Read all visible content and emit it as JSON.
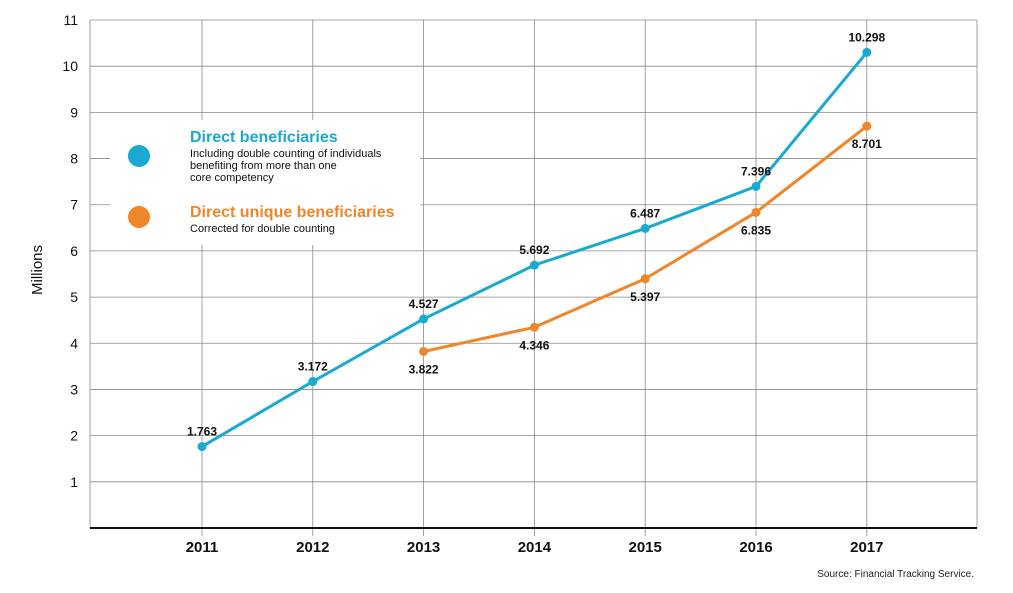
{
  "chart_data": {
    "type": "line",
    "title": "",
    "xlabel": "",
    "ylabel": "Millions",
    "ylim": [
      0,
      11
    ],
    "yticks": [
      1,
      2,
      3,
      4,
      5,
      6,
      7,
      8,
      9,
      10,
      11
    ],
    "categories": [
      "2011",
      "2012",
      "2013",
      "2014",
      "2015",
      "2016",
      "2017"
    ],
    "grid": true,
    "legend_position": "top-left",
    "series": [
      {
        "name": "Direct beneficiaries",
        "description_lines": [
          "Including double counting of individuals",
          "benefiting from more than one",
          "core competency"
        ],
        "color": "#19a9d1",
        "values": [
          1.763,
          3.172,
          4.527,
          5.692,
          6.487,
          7.396,
          10.298
        ],
        "labels": [
          "1.763",
          "3.172",
          "4.527",
          "5.692",
          "6.487",
          "7.396",
          "10.298"
        ]
      },
      {
        "name": "Direct unique beneficiaries",
        "description_lines": [
          "Corrected for double counting"
        ],
        "color": "#f0862a",
        "values": [
          null,
          null,
          3.822,
          4.346,
          5.397,
          6.835,
          8.701
        ],
        "labels": [
          null,
          null,
          "3.822",
          "4.346",
          "5.397",
          "6.835",
          "8.701"
        ]
      }
    ],
    "source": "Source: Financial Tracking Service."
  }
}
